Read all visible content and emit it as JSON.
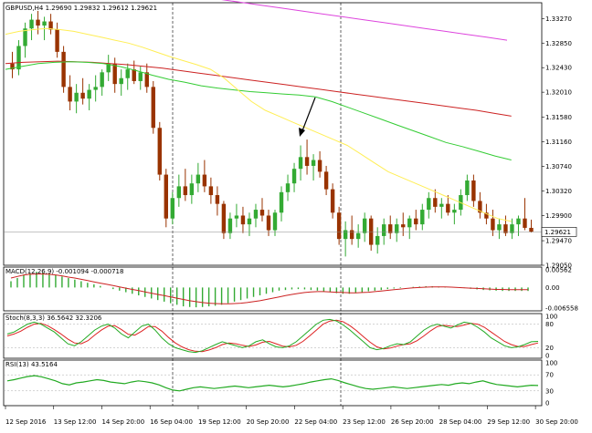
{
  "main_panel": {
    "title": "GBPUSD,H4 1.29690 1.29832 1.29612 1.29621",
    "price_ticks": [
      "1.33270",
      "1.32850",
      "1.32430",
      "1.32010",
      "1.31580",
      "1.31160",
      "1.30740",
      "1.30320",
      "1.29900",
      "1.29470",
      "1.29050"
    ],
    "current_price": "1.29621"
  },
  "macd_panel": {
    "title": "MACD(12,26,9) -0.001094 -0.000718",
    "ticks": [
      "0.00562",
      "0.00",
      "-0.006558"
    ]
  },
  "stoch_panel": {
    "title": "Stoch(8,3,3) 36.5642 32.3206",
    "ticks": [
      "100",
      "80",
      "20",
      "0"
    ]
  },
  "rsi_panel": {
    "title": "RSI(13) 43.5164",
    "ticks": [
      "100",
      "70",
      "30",
      "0"
    ]
  },
  "time_axis": [
    "12 Sep 2016",
    "13 Sep 12:00",
    "14 Sep 20:00",
    "16 Sep 04:00",
    "19 Sep 12:00",
    "20 Sep 20:00",
    "22 Sep 04:00",
    "23 Sep 12:00",
    "26 Sep 20:00",
    "28 Sep 04:00",
    "29 Sep 12:00",
    "30 Sep 20:00"
  ],
  "colors": {
    "bull": "#33aa33",
    "bear": "#993300",
    "ma_fast": "#ffee55",
    "ma_mid": "#33cc33",
    "ma_slow": "#cc2222",
    "ma_long": "#dd44dd"
  },
  "chart_data": {
    "type": "candlestick",
    "symbol": "GBPUSD",
    "timeframe": "H4",
    "ohlc": [
      [
        1.325,
        1.327,
        1.3225,
        1.324
      ],
      [
        1.324,
        1.329,
        1.323,
        1.328
      ],
      [
        1.328,
        1.332,
        1.326,
        1.331
      ],
      [
        1.331,
        1.3335,
        1.329,
        1.3325
      ],
      [
        1.3325,
        1.334,
        1.33,
        1.3315
      ],
      [
        1.3315,
        1.333,
        1.329,
        1.3322
      ],
      [
        1.3322,
        1.3335,
        1.33,
        1.3308
      ],
      [
        1.3308,
        1.332,
        1.326,
        1.327
      ],
      [
        1.327,
        1.328,
        1.32,
        1.321
      ],
      [
        1.321,
        1.323,
        1.317,
        1.3185
      ],
      [
        1.3185,
        1.3215,
        1.3165,
        1.32
      ],
      [
        1.32,
        1.3225,
        1.318,
        1.319
      ],
      [
        1.319,
        1.3215,
        1.317,
        1.3205
      ],
      [
        1.3205,
        1.323,
        1.3185,
        1.321
      ],
      [
        1.321,
        1.324,
        1.3195,
        1.3235
      ],
      [
        1.3235,
        1.3265,
        1.322,
        1.325
      ],
      [
        1.325,
        1.326,
        1.32,
        1.3215
      ],
      [
        1.3215,
        1.324,
        1.3195,
        1.3225
      ],
      [
        1.3225,
        1.325,
        1.3205,
        1.324
      ],
      [
        1.324,
        1.3255,
        1.3215,
        1.322
      ],
      [
        1.322,
        1.3245,
        1.3205,
        1.3235
      ],
      [
        1.3235,
        1.325,
        1.32,
        1.321
      ],
      [
        1.321,
        1.322,
        1.313,
        1.314
      ],
      [
        1.314,
        1.315,
        1.305,
        1.306
      ],
      [
        1.306,
        1.307,
        1.297,
        1.2985
      ],
      [
        1.2985,
        1.303,
        1.2975,
        1.302
      ],
      [
        1.302,
        1.306,
        1.3005,
        1.304
      ],
      [
        1.304,
        1.307,
        1.3015,
        1.3025
      ],
      [
        1.3025,
        1.306,
        1.301,
        1.3045
      ],
      [
        1.3045,
        1.308,
        1.303,
        1.306
      ],
      [
        1.306,
        1.3085,
        1.303,
        1.304
      ],
      [
        1.304,
        1.3055,
        1.301,
        1.3025
      ],
      [
        1.3025,
        1.304,
        1.299,
        1.301
      ],
      [
        1.301,
        1.3015,
        1.295,
        1.296
      ],
      [
        1.296,
        1.2995,
        1.295,
        1.2985
      ],
      [
        1.2985,
        1.301,
        1.297,
        1.299
      ],
      [
        1.299,
        1.3005,
        1.296,
        1.2975
      ],
      [
        1.2975,
        1.2995,
        1.2955,
        1.2985
      ],
      [
        1.2985,
        1.301,
        1.297,
        1.3
      ],
      [
        1.3,
        1.302,
        1.298,
        1.299
      ],
      [
        1.299,
        1.3,
        1.2955,
        1.2965
      ],
      [
        1.2965,
        1.3,
        1.2955,
        1.2995
      ],
      [
        1.2995,
        1.304,
        1.298,
        1.303
      ],
      [
        1.303,
        1.306,
        1.3015,
        1.3045
      ],
      [
        1.3045,
        1.308,
        1.303,
        1.307
      ],
      [
        1.307,
        1.311,
        1.305,
        1.309
      ],
      [
        1.309,
        1.312,
        1.306,
        1.3075
      ],
      [
        1.3075,
        1.3095,
        1.305,
        1.3085
      ],
      [
        1.3085,
        1.31,
        1.3055,
        1.3065
      ],
      [
        1.3065,
        1.3075,
        1.3025,
        1.3035
      ],
      [
        1.3035,
        1.3045,
        1.2985,
        1.2995
      ],
      [
        1.2995,
        1.3005,
        1.294,
        1.295
      ],
      [
        1.295,
        1.298,
        1.292,
        1.2965
      ],
      [
        1.2965,
        1.299,
        1.294,
        1.295
      ],
      [
        1.295,
        1.2975,
        1.2935,
        1.296
      ],
      [
        1.296,
        1.2995,
        1.2945,
        1.2985
      ],
      [
        1.2985,
        1.299,
        1.293,
        1.294
      ],
      [
        1.294,
        1.297,
        1.2925,
        1.2955
      ],
      [
        1.2955,
        1.2985,
        1.294,
        1.2975
      ],
      [
        1.2975,
        1.299,
        1.295,
        1.296
      ],
      [
        1.296,
        1.2985,
        1.2945,
        1.2975
      ],
      [
        1.2975,
        1.2995,
        1.2955,
        1.297
      ],
      [
        1.297,
        1.299,
        1.295,
        1.2985
      ],
      [
        1.2985,
        1.3,
        1.2965,
        1.2975
      ],
      [
        1.2975,
        1.301,
        1.2965,
        1.3
      ],
      [
        1.3,
        1.303,
        1.2985,
        1.302
      ],
      [
        1.302,
        1.3035,
        1.2995,
        1.3005
      ],
      [
        1.3005,
        1.302,
        1.2985,
        1.301
      ],
      [
        1.301,
        1.3025,
        1.299,
        1.2995
      ],
      [
        1.2995,
        1.301,
        1.2975,
        1.3
      ],
      [
        1.3,
        1.3035,
        1.299,
        1.3025
      ],
      [
        1.3025,
        1.306,
        1.3015,
        1.305
      ],
      [
        1.305,
        1.306,
        1.3005,
        1.3015
      ],
      [
        1.3015,
        1.303,
        1.2985,
        1.2995
      ],
      [
        1.2995,
        1.301,
        1.2975,
        1.2985
      ],
      [
        1.2985,
        1.3,
        1.2955,
        1.2965
      ],
      [
        1.2965,
        1.2985,
        1.295,
        1.2975
      ],
      [
        1.2975,
        1.299,
        1.2955,
        1.296
      ],
      [
        1.296,
        1.2985,
        1.295,
        1.2975
      ],
      [
        1.2975,
        1.299,
        1.2955,
        1.2985
      ],
      [
        1.2985,
        1.302,
        1.2965,
        1.2969
      ],
      [
        1.2969,
        1.2983,
        1.2961,
        1.2962
      ]
    ],
    "ma_fast": [
      1.33,
      1.3305,
      1.3308,
      1.331,
      1.3308,
      1.3305,
      1.33,
      1.3295,
      1.329,
      1.3285,
      1.3278,
      1.327,
      1.3262,
      1.3255,
      1.3248,
      1.324,
      1.3225,
      1.3205,
      1.3185,
      1.317,
      1.316,
      1.315,
      1.314,
      1.313,
      1.312,
      1.311,
      1.3095,
      1.308,
      1.3065,
      1.3055,
      1.3045,
      1.3035,
      1.3025,
      1.3015,
      1.3005,
      1.2995,
      1.2985,
      1.298
    ],
    "ma_mid": [
      1.324,
      1.3245,
      1.325,
      1.3252,
      1.3253,
      1.3252,
      1.325,
      1.3245,
      1.3238,
      1.323,
      1.3223,
      1.3218,
      1.3212,
      1.3208,
      1.3205,
      1.3202,
      1.32,
      1.3198,
      1.3196,
      1.3193,
      1.3185,
      1.3175,
      1.3165,
      1.3155,
      1.3145,
      1.3135,
      1.3125,
      1.3115,
      1.3108,
      1.31,
      1.3092,
      1.3085
    ],
    "ma_slow": [
      1.325,
      1.3252,
      1.3253,
      1.3254,
      1.3253,
      1.3252,
      1.325,
      1.3248,
      1.3245,
      1.3242,
      1.3238,
      1.3234,
      1.323,
      1.3226,
      1.3222,
      1.3218,
      1.3214,
      1.321,
      1.3206,
      1.3202,
      1.3198,
      1.3194,
      1.319,
      1.3186,
      1.3182,
      1.3178,
      1.3174,
      1.317,
      1.3165,
      1.316
    ],
    "ma_long": [
      1.336,
      1.3355,
      1.335,
      1.3345,
      1.334,
      1.3335,
      1.333,
      1.3325,
      1.332,
      1.3315,
      1.331,
      1.3305,
      1.33,
      1.3295,
      1.329
    ],
    "macd_hist": [
      0.002,
      0.003,
      0.004,
      0.0045,
      0.005,
      0.0048,
      0.0045,
      0.004,
      0.0035,
      0.003,
      0.0025,
      0.002,
      0.0015,
      0.001,
      0.0005,
      0.0,
      -0.0005,
      -0.001,
      -0.0015,
      -0.002,
      -0.0025,
      -0.003,
      -0.0035,
      -0.004,
      -0.0045,
      -0.005,
      -0.0055,
      -0.006,
      -0.0062,
      -0.0063,
      -0.0062,
      -0.006,
      -0.0058,
      -0.0055,
      -0.005,
      -0.0045,
      -0.004,
      -0.0035,
      -0.003,
      -0.0025,
      -0.002,
      -0.0015,
      -0.001,
      -0.0008,
      -0.0006,
      -0.0005,
      -0.0006,
      -0.0008,
      -0.001,
      -0.0012,
      -0.0015,
      -0.0018,
      -0.002,
      -0.002,
      -0.0018,
      -0.0015,
      -0.0012,
      -0.001,
      -0.0008,
      -0.0005,
      -0.0003,
      -0.0002,
      0.0,
      0.0002,
      0.0003,
      0.0004,
      0.0004,
      0.0003,
      0.0002,
      0.0001,
      0.0,
      -0.0002,
      -0.0004,
      -0.0006,
      -0.0008,
      -0.0009,
      -0.001,
      -0.0011,
      -0.0011,
      -0.0011,
      -0.0011,
      -0.0011
    ],
    "macd_signal": [
      0.003,
      0.0035,
      0.004,
      0.0042,
      0.0043,
      0.0043,
      0.0042,
      0.004,
      0.0037,
      0.0033,
      0.003,
      0.0026,
      0.0022,
      0.0018,
      0.0014,
      0.001,
      0.0006,
      0.0002,
      -0.0002,
      -0.0006,
      -0.001,
      -0.0014,
      -0.0018,
      -0.0022,
      -0.0026,
      -0.003,
      -0.0034,
      -0.0038,
      -0.0042,
      -0.0045,
      -0.0048,
      -0.005,
      -0.0051,
      -0.0052,
      -0.0052,
      -0.0051,
      -0.005,
      -0.0048,
      -0.0045,
      -0.0042,
      -0.0038,
      -0.0034,
      -0.003,
      -0.0026,
      -0.0022,
      -0.0019,
      -0.0016,
      -0.0014,
      -0.0013,
      -0.0013,
      -0.0014,
      -0.0015,
      -0.0016,
      -0.0017,
      -0.0017,
      -0.0016,
      -0.0015,
      -0.0013,
      -0.0011,
      -0.0009,
      -0.0007,
      -0.0005,
      -0.0003,
      -0.0001,
      0.0,
      0.0001,
      0.0002,
      0.0002,
      0.0002,
      0.0001,
      0.0,
      -0.0001,
      -0.0002,
      -0.0003,
      -0.0004,
      -0.0005,
      -0.0006,
      -0.0006,
      -0.0007,
      -0.0007,
      -0.0007,
      -0.0007
    ],
    "stoch_k": [
      55,
      60,
      70,
      80,
      85,
      80,
      70,
      60,
      45,
      30,
      25,
      35,
      50,
      65,
      75,
      80,
      70,
      55,
      45,
      60,
      75,
      80,
      65,
      45,
      30,
      20,
      15,
      10,
      8,
      12,
      20,
      28,
      35,
      30,
      25,
      20,
      25,
      35,
      40,
      30,
      22,
      20,
      25,
      35,
      50,
      65,
      80,
      90,
      92,
      88,
      78,
      65,
      50,
      35,
      20,
      15,
      18,
      25,
      30,
      28,
      35,
      50,
      65,
      75,
      80,
      75,
      70,
      78,
      85,
      82,
      72,
      60,
      45,
      35,
      25,
      20,
      22,
      28,
      35,
      36
    ],
    "stoch_d": [
      50,
      55,
      62,
      72,
      80,
      82,
      76,
      66,
      55,
      42,
      32,
      30,
      38,
      52,
      65,
      75,
      76,
      66,
      54,
      52,
      62,
      74,
      74,
      62,
      46,
      32,
      22,
      15,
      11,
      10,
      14,
      20,
      28,
      32,
      30,
      26,
      23,
      27,
      34,
      36,
      30,
      24,
      22,
      26,
      36,
      50,
      65,
      80,
      88,
      90,
      86,
      76,
      63,
      48,
      34,
      22,
      17,
      19,
      24,
      28,
      30,
      38,
      50,
      63,
      74,
      77,
      75,
      74,
      78,
      82,
      80,
      72,
      60,
      48,
      36,
      28,
      23,
      23,
      28,
      32
    ],
    "rsi": [
      55,
      58,
      62,
      66,
      68,
      65,
      60,
      55,
      48,
      45,
      50,
      52,
      55,
      58,
      56,
      52,
      50,
      48,
      52,
      55,
      53,
      50,
      45,
      38,
      32,
      30,
      34,
      38,
      40,
      38,
      36,
      38,
      40,
      42,
      40,
      38,
      40,
      42,
      44,
      42,
      40,
      42,
      45,
      48,
      52,
      55,
      58,
      60,
      56,
      50,
      45,
      40,
      36,
      34,
      36,
      38,
      40,
      38,
      36,
      38,
      40,
      42,
      44,
      46,
      44,
      48,
      50,
      48,
      52,
      55,
      50,
      46,
      44,
      42,
      40,
      42,
      44,
      43.5
    ]
  }
}
